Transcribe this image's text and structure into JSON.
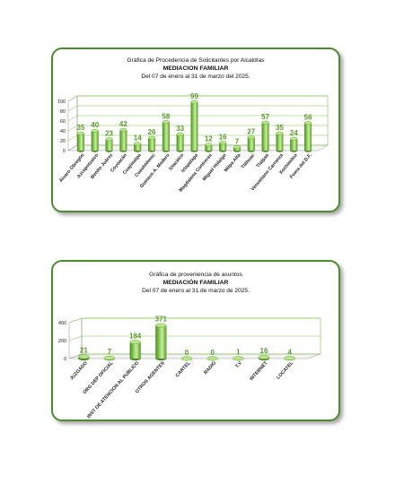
{
  "chart_data": [
    {
      "type": "bar",
      "title": "Gráfica de Procedencia de Solicitantes por Alcaldías",
      "subtitle": "MEDIACION FAMILIAR",
      "date_range": "Del  07 de enero al  31 de marzo del  2025.",
      "categories": [
        "Álvaro Obregón",
        "Azcapotzalco",
        "Benito Juárez",
        "Coyoacán",
        "Cuajimalpa",
        "Cuauhtémoc",
        "Gustavo A. Madero",
        "Iztacalco",
        "Iztapalapa",
        "Magdalena Contreras",
        "Miguel Hidalgo",
        "Milpa Alta",
        "Tláhuac",
        "Tlalpan",
        "Venustiano Carranza",
        "Xochimilco",
        "Fuera del D.F."
      ],
      "values": [
        35,
        40,
        23,
        42,
        14,
        26,
        58,
        33,
        99,
        12,
        16,
        7,
        27,
        57,
        35,
        24,
        56
      ],
      "ylim": [
        0,
        100
      ],
      "yticks": [
        0,
        20,
        40,
        60,
        80,
        100
      ],
      "grid": true,
      "legend": "none",
      "bar_color": "#8ccf55",
      "label_color": "#5c9a2d"
    },
    {
      "type": "bar",
      "title": "Gráfica de proveniencia de asuntos",
      "subtitle": "MEDIACIÓN FAMILIAR",
      "date_range": "Del  07 de enero al  31 de marzo de  2025.",
      "categories": [
        "JUZGADO",
        "ORG DEP OFICIAL",
        "INST DE ATENCION AL PUBLICO",
        "OTROS AGENTES",
        "CARTEL",
        "RADIO",
        "T.V",
        "INTERNET",
        "LOCATEL"
      ],
      "values": [
        21,
        7,
        184,
        371,
        0,
        0,
        1,
        16,
        4
      ],
      "ylim": [
        0,
        400
      ],
      "yticks": [
        0,
        200,
        400
      ],
      "grid": true,
      "legend": "none",
      "bar_color": "#8ccf55",
      "label_color": "#5c9a2d"
    }
  ]
}
